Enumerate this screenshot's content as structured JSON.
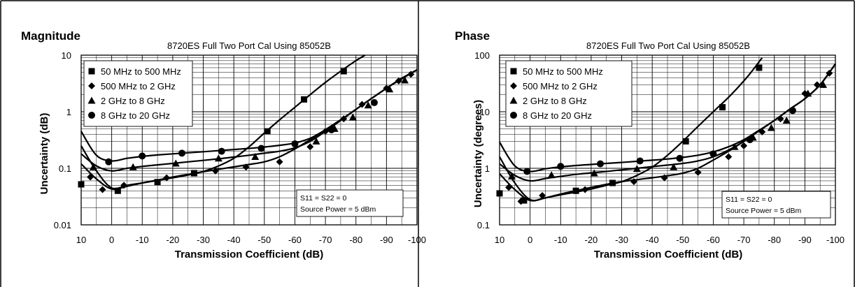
{
  "chart_data": [
    {
      "type": "line",
      "panel_title": "Magnitude",
      "title": "8720ES Full Two Port Cal Using 85052B",
      "xlabel": "Transmission Coefficient (dB)",
      "ylabel": "Uncertainty (dB)",
      "x_scale": "linear",
      "x_reversed": true,
      "xlim": [
        10,
        -100
      ],
      "y_scale": "log",
      "ylim": [
        0.01,
        10
      ],
      "x_ticks": [
        "10",
        "0",
        "-10",
        "-20",
        "-30",
        "-40",
        "-50",
        "-60",
        "-70",
        "-80",
        "-90",
        "-100"
      ],
      "y_ticks": [
        "0.01",
        "0.1",
        "1",
        "10"
      ],
      "grid": true,
      "legend_position": "top-left",
      "annotation": [
        "S11 = S22 = 0",
        "Source Power = 5 dBm"
      ],
      "series": [
        {
          "name": "50 MHz to 500 MHz",
          "marker": "square",
          "x": [
            10,
            5,
            0,
            -5,
            -10,
            -15,
            -20,
            -25,
            -30,
            -35,
            -40,
            -45,
            -50,
            -55,
            -60,
            -65,
            -70,
            -75,
            -80,
            -83
          ],
          "y": [
            0.25,
            0.09,
            0.045,
            0.05,
            0.055,
            0.061,
            0.068,
            0.076,
            0.088,
            0.11,
            0.15,
            0.24,
            0.42,
            0.72,
            1.2,
            2.0,
            3.3,
            5.2,
            8.0,
            10
          ],
          "marker_x": [
            10,
            -2,
            -15,
            -27,
            -51,
            -63,
            -76
          ],
          "marker_y": [
            0.052,
            0.04,
            0.057,
            0.082,
            0.45,
            1.65,
            5.2
          ]
        },
        {
          "name": "500 MHz to 2 GHz",
          "marker": "diamond",
          "x": [
            10,
            5,
            0,
            -5,
            -10,
            -15,
            -20,
            -25,
            -30,
            -35,
            -40,
            -45,
            -50,
            -55,
            -60,
            -65,
            -70,
            -75,
            -80,
            -85,
            -90,
            -95,
            -100
          ],
          "y": [
            0.12,
            0.065,
            0.043,
            0.048,
            0.055,
            0.062,
            0.07,
            0.078,
            0.087,
            0.096,
            0.106,
            0.117,
            0.13,
            0.16,
            0.22,
            0.32,
            0.48,
            0.72,
            1.1,
            1.7,
            2.6,
            3.8,
            5.5
          ],
          "marker_x": [
            7,
            3,
            -4,
            -18,
            -34,
            -44,
            -55,
            -65,
            -70,
            -76,
            -82,
            -90,
            -94,
            -98
          ],
          "marker_y": [
            0.07,
            0.042,
            0.05,
            0.068,
            0.09,
            0.105,
            0.13,
            0.24,
            0.45,
            0.75,
            1.35,
            2.6,
            3.5,
            4.6
          ]
        },
        {
          "name": "2 GHz to 8 GHz",
          "marker": "triangle",
          "x": [
            10,
            5,
            0,
            -5,
            -10,
            -15,
            -20,
            -25,
            -30,
            -35,
            -40,
            -45,
            -50,
            -55,
            -60,
            -65,
            -70,
            -75,
            -80,
            -85,
            -90,
            -95,
            -100
          ],
          "y": [
            0.18,
            0.11,
            0.09,
            0.1,
            0.108,
            0.115,
            0.122,
            0.13,
            0.138,
            0.147,
            0.158,
            0.17,
            0.185,
            0.2,
            0.23,
            0.3,
            0.45,
            0.7,
            1.1,
            1.7,
            2.6,
            3.9,
            5.5
          ],
          "marker_x": [
            6,
            -7,
            -21,
            -35,
            -47,
            -67,
            -73,
            -79,
            -84,
            -91,
            -96
          ],
          "marker_y": [
            0.105,
            0.105,
            0.122,
            0.15,
            0.16,
            0.3,
            0.5,
            0.8,
            1.3,
            2.5,
            3.6
          ]
        },
        {
          "name": "8 GHz to 20 GHz",
          "marker": "circle",
          "x": [
            10,
            5,
            0,
            -5,
            -10,
            -15,
            -20,
            -25,
            -30,
            -35,
            -40,
            -45,
            -50,
            -55,
            -60,
            -65,
            -70,
            -75,
            -80,
            -85,
            -90,
            -95,
            -100
          ],
          "y": [
            0.45,
            0.17,
            0.135,
            0.15,
            0.162,
            0.172,
            0.18,
            0.188,
            0.196,
            0.205,
            0.215,
            0.225,
            0.238,
            0.255,
            0.28,
            0.34,
            0.48,
            0.72,
            1.1,
            1.7,
            2.6,
            3.9,
            5.5
          ],
          "marker_x": [
            1,
            -10,
            -23,
            -36,
            -49,
            -60,
            -72,
            -86
          ],
          "marker_y": [
            0.13,
            0.165,
            0.185,
            0.2,
            0.225,
            0.27,
            0.48,
            1.45
          ]
        }
      ]
    },
    {
      "type": "line",
      "panel_title": "Phase",
      "title": "8720ES Full Two Port Cal Using 85052B",
      "xlabel": "Transmission Coefficient (dB)",
      "ylabel": "Uncertainty (degrees)",
      "x_scale": "linear",
      "x_reversed": true,
      "xlim": [
        10,
        -100
      ],
      "y_scale": "log",
      "ylim": [
        0.1,
        100
      ],
      "x_ticks": [
        "10",
        "0",
        "-10",
        "-20",
        "-30",
        "-40",
        "-50",
        "-60",
        "-70",
        "-80",
        "-90",
        "-100"
      ],
      "y_ticks": [
        "0.1",
        "1",
        "10",
        "100"
      ],
      "grid": true,
      "legend_position": "top-left",
      "annotation": [
        "S11 = S22 = 0",
        "Source Power = 5 dBm"
      ],
      "series": [
        {
          "name": "50 MHz to 500 MHz",
          "marker": "square",
          "x": [
            10,
            5,
            0,
            -5,
            -10,
            -15,
            -20,
            -25,
            -30,
            -35,
            -40,
            -45,
            -50,
            -55,
            -60,
            -65,
            -70,
            -73,
            -76
          ],
          "y": [
            1.6,
            0.55,
            0.28,
            0.3,
            0.34,
            0.38,
            0.43,
            0.5,
            0.58,
            0.75,
            1.05,
            1.7,
            3.0,
            5.5,
            10,
            18,
            35,
            55,
            90
          ],
          "marker_x": [
            10,
            2,
            -15,
            -27,
            -51,
            -63,
            -75
          ],
          "marker_y": [
            0.36,
            0.27,
            0.4,
            0.55,
            3.0,
            12,
            60
          ]
        },
        {
          "name": "500 MHz to 2 GHz",
          "marker": "diamond",
          "x": [
            10,
            5,
            0,
            -5,
            -10,
            -15,
            -20,
            -25,
            -30,
            -35,
            -40,
            -45,
            -50,
            -55,
            -60,
            -65,
            -70,
            -75,
            -80,
            -85,
            -90,
            -95,
            -100
          ],
          "y": [
            0.8,
            0.42,
            0.27,
            0.3,
            0.35,
            0.4,
            0.46,
            0.52,
            0.58,
            0.63,
            0.68,
            0.74,
            0.82,
            1.0,
            1.4,
            2.0,
            3.0,
            4.6,
            7.0,
            11,
            17,
            30,
            70
          ],
          "marker_x": [
            7,
            3,
            -4,
            -18,
            -34,
            -44,
            -55,
            -65,
            -70,
            -76,
            -82,
            -90,
            -94,
            -98
          ],
          "marker_y": [
            0.46,
            0.26,
            0.33,
            0.42,
            0.58,
            0.68,
            0.85,
            1.6,
            2.5,
            4.4,
            7.5,
            21,
            30,
            48
          ]
        },
        {
          "name": "2 GHz to 8 GHz",
          "marker": "triangle",
          "x": [
            10,
            5,
            0,
            -5,
            -10,
            -15,
            -20,
            -25,
            -30,
            -35,
            -40,
            -45,
            -50,
            -55,
            -60,
            -65,
            -70,
            -75,
            -80,
            -85,
            -90,
            -95,
            -100
          ],
          "y": [
            1.2,
            0.75,
            0.6,
            0.66,
            0.72,
            0.78,
            0.83,
            0.88,
            0.94,
            1.0,
            1.07,
            1.14,
            1.22,
            1.35,
            1.6,
            2.1,
            3.0,
            4.6,
            7.0,
            11,
            17,
            30,
            70
          ],
          "marker_x": [
            6,
            -7,
            -21,
            -35,
            -47,
            -67,
            -73,
            -79,
            -84,
            -91,
            -96
          ],
          "marker_y": [
            0.72,
            0.76,
            0.82,
            0.98,
            1.05,
            2.4,
            3.5,
            5.2,
            7.0,
            21,
            30
          ]
        },
        {
          "name": "8 GHz to 20 GHz",
          "marker": "circle",
          "x": [
            10,
            5,
            0,
            -5,
            -10,
            -15,
            -20,
            -25,
            -30,
            -35,
            -40,
            -45,
            -50,
            -55,
            -60,
            -65,
            -70,
            -75,
            -80,
            -85,
            -90,
            -95,
            -100
          ],
          "y": [
            2.9,
            1.1,
            0.88,
            0.98,
            1.06,
            1.12,
            1.17,
            1.22,
            1.27,
            1.33,
            1.39,
            1.46,
            1.56,
            1.7,
            1.95,
            2.4,
            3.2,
            4.7,
            7.0,
            11,
            17,
            30,
            70
          ],
          "marker_x": [
            1,
            -10,
            -23,
            -36,
            -49,
            -60,
            -72,
            -86
          ],
          "marker_y": [
            0.88,
            1.08,
            1.2,
            1.35,
            1.5,
            1.8,
            3.2,
            10.5
          ]
        }
      ]
    }
  ]
}
